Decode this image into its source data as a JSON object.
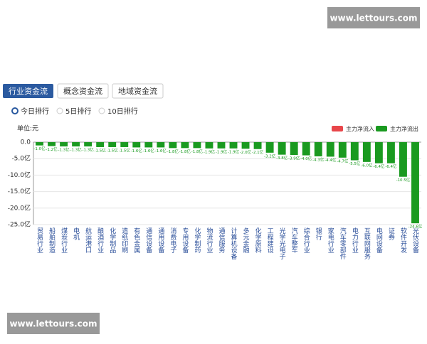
{
  "watermarks": [
    "www.lettours.com",
    "www.lettours.com"
  ],
  "ui": {
    "tabs": [
      "行业资金流",
      "概念资金流",
      "地域资金流"
    ],
    "radios": [
      "今日排行",
      "5日排行",
      "10日排行"
    ]
  },
  "chart_data": {
    "type": "bar",
    "unit_label": "单位:元",
    "categories": [
      "贸易行业",
      "船舶制造",
      "煤炭行业",
      "电机",
      "航运港口",
      "酿酒行业",
      "化学制品",
      "造纸印刷",
      "有色金属",
      "通信设备",
      "通用设备",
      "消费电子",
      "专用设备",
      "化学制药",
      "物流行业",
      "通信服务",
      "计算机设备",
      "多元金融",
      "化学原料",
      "工程建设",
      "光学光电子",
      "汽车整车",
      "综合行业",
      "银行",
      "家电行业",
      "汽车零部件",
      "电力行业",
      "互联网服务",
      "电网设备",
      "证券",
      "软件开发",
      "光伏设备"
    ],
    "series": [
      {
        "name": "主力净流入",
        "color": "#e8464a",
        "values": [
          null,
          null,
          null,
          null,
          null,
          null,
          null,
          null,
          null,
          null,
          null,
          null,
          null,
          null,
          null,
          null,
          null,
          null,
          null,
          null,
          null,
          null,
          null,
          null,
          null,
          null,
          null,
          null,
          null,
          null,
          null,
          null
        ]
      },
      {
        "name": "主力净流出",
        "color": "#1a9a20",
        "values": [
          -1.0,
          -1.2,
          -1.3,
          -1.3,
          -1.3,
          -1.5,
          -1.5,
          -1.5,
          -1.6,
          -1.6,
          -1.6,
          -1.8,
          -1.8,
          -1.8,
          -1.9,
          -1.9,
          -1.9,
          -2.0,
          -2.1,
          -3.2,
          -3.8,
          -3.9,
          -4.0,
          -4.3,
          -4.4,
          -4.7,
          -5.5,
          -6.0,
          -6.4,
          -6.4,
          -10.5,
          -24.6
        ],
        "value_labels": [
          "-1.0亿",
          "-1.2亿",
          "-1.3亿",
          "-1.3亿",
          "-1.3亿",
          "-1.5亿",
          "-1.5亿",
          "-1.5亿",
          "-1.6亿",
          "-1.6亿",
          "-1.6亿",
          "-1.8亿",
          "-1.8亿",
          "-1.8亿",
          "-1.9亿",
          "-1.9亿",
          "-1.9亿",
          "-2.0亿",
          "-2.1亿",
          "-3.2亿",
          "-3.8亿",
          "-3.9亿",
          "-4.0亿",
          "-4.3亿",
          "-4.4亿",
          "-4.7亿",
          "-5.5亿",
          "-6.0亿",
          "-6.4亿",
          "-6.4亿",
          "-10.5亿",
          "-24.6亿"
        ]
      }
    ],
    "ylim": [
      -25,
      0
    ],
    "yticks": [
      {
        "value": 0,
        "label": "0.0"
      },
      {
        "value": -5,
        "label": "-5.0亿"
      },
      {
        "value": -10,
        "label": "-10.0亿"
      },
      {
        "value": -15,
        "label": "-15.0亿"
      },
      {
        "value": -20,
        "label": "-20.0亿"
      },
      {
        "value": -25,
        "label": "-25.0亿"
      }
    ],
    "grid": true,
    "legend": "top-right"
  }
}
